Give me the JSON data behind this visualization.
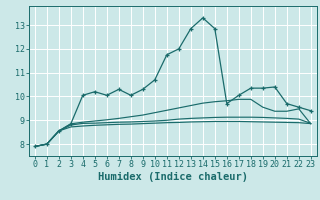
{
  "title": "",
  "xlabel": "Humidex (Indice chaleur)",
  "xlim": [
    -0.5,
    23.5
  ],
  "ylim": [
    7.5,
    13.8
  ],
  "xticks": [
    0,
    1,
    2,
    3,
    4,
    5,
    6,
    7,
    8,
    9,
    10,
    11,
    12,
    13,
    14,
    15,
    16,
    17,
    18,
    19,
    20,
    21,
    22,
    23
  ],
  "yticks": [
    8,
    9,
    10,
    11,
    12,
    13
  ],
  "bg_color": "#cce8e8",
  "line_color": "#1a6b6b",
  "grid_color": "#ffffff",
  "lines": [
    {
      "x": [
        0,
        1,
        2,
        3,
        4,
        5,
        6,
        7,
        8,
        9,
        10,
        11,
        12,
        13,
        14,
        15,
        16,
        17,
        18,
        19,
        20,
        21,
        22,
        23
      ],
      "y": [
        7.9,
        8.0,
        8.55,
        8.85,
        10.05,
        10.2,
        10.05,
        10.3,
        10.05,
        10.3,
        10.7,
        11.75,
        12.0,
        12.85,
        13.3,
        12.85,
        9.7,
        10.05,
        10.35,
        10.35,
        10.4,
        9.7,
        9.55,
        9.4
      ],
      "marker": true
    },
    {
      "x": [
        0,
        1,
        2,
        3,
        4,
        5,
        6,
        7,
        8,
        9,
        10,
        11,
        12,
        13,
        14,
        15,
        16,
        17,
        18,
        19,
        20,
        21,
        22,
        23
      ],
      "y": [
        7.9,
        8.0,
        8.55,
        8.85,
        8.92,
        8.97,
        9.02,
        9.08,
        9.15,
        9.22,
        9.32,
        9.42,
        9.52,
        9.62,
        9.72,
        9.78,
        9.82,
        9.88,
        9.88,
        9.55,
        9.38,
        9.38,
        9.48,
        8.85
      ],
      "marker": false
    },
    {
      "x": [
        0,
        1,
        2,
        3,
        4,
        5,
        6,
        7,
        8,
        9,
        10,
        11,
        12,
        13,
        14,
        15,
        16,
        17,
        18,
        19,
        20,
        21,
        22,
        23
      ],
      "y": [
        7.9,
        8.0,
        8.55,
        8.8,
        8.87,
        8.88,
        8.9,
        8.92,
        8.93,
        8.95,
        8.97,
        9.0,
        9.05,
        9.08,
        9.1,
        9.12,
        9.13,
        9.13,
        9.13,
        9.12,
        9.1,
        9.08,
        9.05,
        8.87
      ],
      "marker": false
    },
    {
      "x": [
        0,
        1,
        2,
        3,
        4,
        5,
        6,
        7,
        8,
        9,
        10,
        11,
        12,
        13,
        14,
        15,
        16,
        17,
        18,
        19,
        20,
        21,
        22,
        23
      ],
      "y": [
        7.9,
        8.0,
        8.55,
        8.72,
        8.76,
        8.79,
        8.81,
        8.83,
        8.84,
        8.86,
        8.88,
        8.9,
        8.91,
        8.93,
        8.94,
        8.95,
        8.95,
        8.95,
        8.94,
        8.93,
        8.92,
        8.91,
        8.9,
        8.86
      ],
      "marker": false
    }
  ],
  "font_color": "#1a6b6b",
  "tick_fontsize": 6,
  "label_fontsize": 7.5
}
